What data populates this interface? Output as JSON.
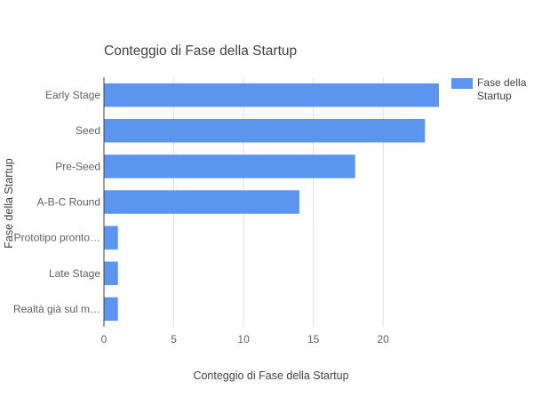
{
  "chart_data": {
    "type": "bar",
    "orientation": "horizontal",
    "title": "Conteggio di Fase della Startup",
    "xlabel": "Conteggio di Fase della Startup",
    "ylabel": "Fase della Startup",
    "categories": [
      "Early Stage",
      "Seed",
      "Pre-Seed",
      "A-B-C Round",
      "Prototipo pronto…",
      "Late Stage",
      "Realtà già sul m…"
    ],
    "series": [
      {
        "name": "Fase della Startup",
        "values": [
          24,
          23,
          18,
          14,
          1,
          1,
          1
        ],
        "color": "#5b95f0"
      }
    ],
    "xlim": [
      0,
      24
    ],
    "xticks": [
      0,
      5,
      10,
      15,
      20
    ],
    "grid": true,
    "legend_position": "right"
  }
}
